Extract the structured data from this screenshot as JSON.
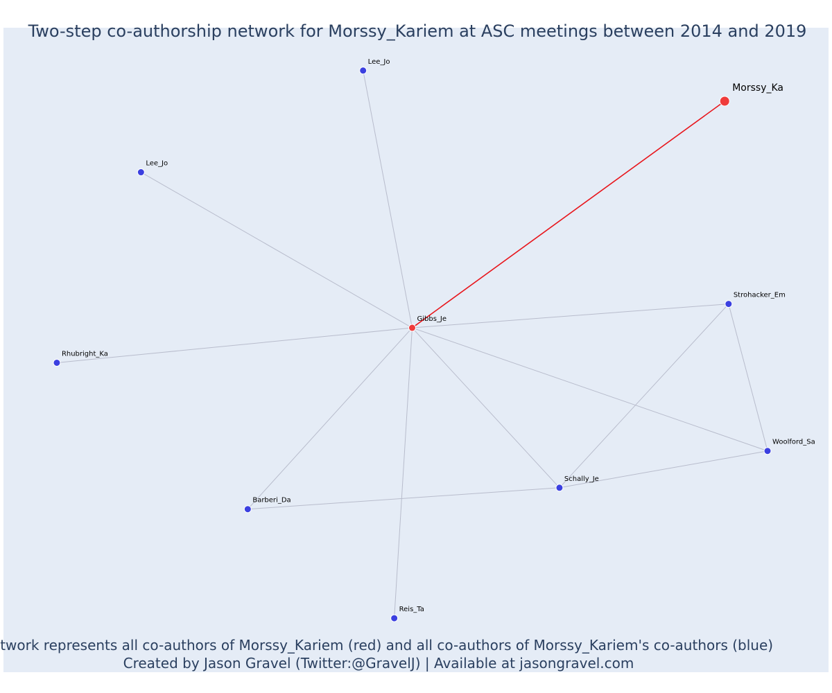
{
  "title": "Two-step co-authorship network for Morssy_Kariem at ASC meetings between 2014 and 2019",
  "caption_line1": "Network represents all co-authors of Morssy_Kariem (red) and all co-authors of Morssy_Kariem's co-authors (blue)",
  "caption_line2": "Created by Jason Gravel (Twitter:@GravelJ) | Available at jasongravel.com",
  "colors": {
    "background": "#e5ecf6",
    "focal_node": "#ef3b3b",
    "coauthor_node": "#3b40e0",
    "edge_default": "#b8bccc",
    "edge_focal": "#e8151b",
    "text": "#2a3f5f"
  },
  "chart_data": {
    "type": "network",
    "nodes": [
      {
        "id": "morssy",
        "label": "Morssy_Ka",
        "group": "focal",
        "x": 0.905,
        "y": 0.905
      },
      {
        "id": "gibbs",
        "label": "Gibbs_Je",
        "group": "coauthor",
        "x": 0.504,
        "y": 0.535
      },
      {
        "id": "lee1",
        "label": "Lee_Jo",
        "group": "second",
        "x": 0.441,
        "y": 0.955
      },
      {
        "id": "lee2",
        "label": "Lee_Jo",
        "group": "second",
        "x": 0.156,
        "y": 0.789
      },
      {
        "id": "rhubright",
        "label": "Rhubright_Ka",
        "group": "second",
        "x": 0.048,
        "y": 0.478
      },
      {
        "id": "strohacker",
        "label": "Strohacker_Em",
        "group": "second",
        "x": 0.91,
        "y": 0.574
      },
      {
        "id": "woolford",
        "label": "Woolford_Sa",
        "group": "second",
        "x": 0.96,
        "y": 0.334
      },
      {
        "id": "schally",
        "label": "Schally_Je",
        "group": "second",
        "x": 0.693,
        "y": 0.274
      },
      {
        "id": "barberi",
        "label": "Barberi_Da",
        "group": "second",
        "x": 0.293,
        "y": 0.239
      },
      {
        "id": "reis",
        "label": "Reis_Ta",
        "group": "second",
        "x": 0.481,
        "y": 0.061
      }
    ],
    "edges": [
      {
        "source": "gibbs",
        "target": "morssy",
        "focal": true
      },
      {
        "source": "gibbs",
        "target": "lee1",
        "focal": false
      },
      {
        "source": "gibbs",
        "target": "lee2",
        "focal": false
      },
      {
        "source": "gibbs",
        "target": "rhubright",
        "focal": false
      },
      {
        "source": "gibbs",
        "target": "strohacker",
        "focal": false
      },
      {
        "source": "gibbs",
        "target": "woolford",
        "focal": false
      },
      {
        "source": "gibbs",
        "target": "schally",
        "focal": false
      },
      {
        "source": "gibbs",
        "target": "barberi",
        "focal": false
      },
      {
        "source": "gibbs",
        "target": "reis",
        "focal": false
      },
      {
        "source": "strohacker",
        "target": "woolford",
        "focal": false
      },
      {
        "source": "strohacker",
        "target": "schally",
        "focal": false
      },
      {
        "source": "woolford",
        "target": "schally",
        "focal": false
      },
      {
        "source": "schally",
        "target": "barberi",
        "focal": false
      }
    ]
  }
}
